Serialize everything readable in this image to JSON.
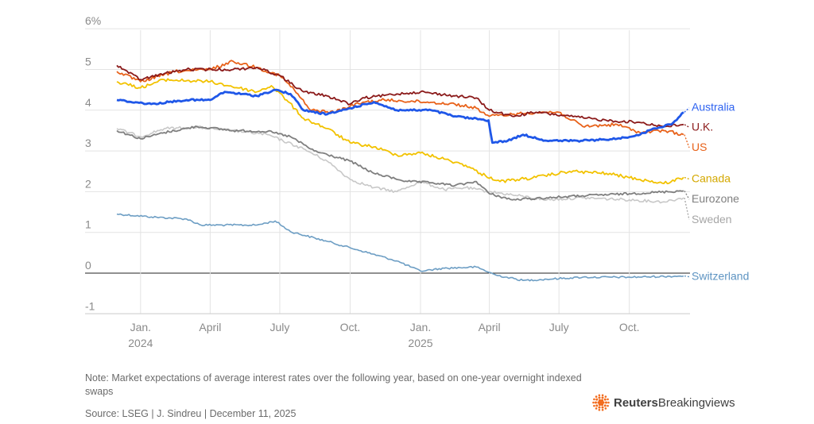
{
  "note": "Note: Market expectations of average interest rates over the following year, based on one-year overnight indexed swaps",
  "source": "Source: LSEG | J. Sindreu | December 11, 2025",
  "brand": {
    "bold": "Reuters",
    "light": "Breakingviews",
    "logo_icon": "reuters-dots-logo-icon"
  },
  "chart_data": {
    "type": "line",
    "y_unit_suffix": "%",
    "ylim": [
      -1.2,
      6
    ],
    "yticks": [
      -1,
      0,
      1,
      2,
      3,
      4,
      5,
      6
    ],
    "ytick_labels": [
      "-1",
      "0",
      "1",
      "2",
      "3",
      "4",
      "5",
      "6%"
    ],
    "x_range": [
      "2023-12-01",
      "2025-12-11"
    ],
    "xticks": [
      {
        "date": "2024-01-01",
        "label": "Jan.",
        "sublabel": "2024"
      },
      {
        "date": "2024-04-01",
        "label": "April",
        "sublabel": ""
      },
      {
        "date": "2024-07-01",
        "label": "July",
        "sublabel": ""
      },
      {
        "date": "2024-10-01",
        "label": "Oct.",
        "sublabel": ""
      },
      {
        "date": "2025-01-01",
        "label": "Jan.",
        "sublabel": "2025"
      },
      {
        "date": "2025-04-01",
        "label": "April",
        "sublabel": ""
      },
      {
        "date": "2025-07-01",
        "label": "July",
        "sublabel": ""
      },
      {
        "date": "2025-10-01",
        "label": "Oct.",
        "sublabel": ""
      }
    ],
    "grid": "vertical",
    "zero_line": true,
    "series": [
      {
        "name": "Switzerland",
        "color": "#6d9ec4",
        "width": 1.6,
        "noise": 0.02,
        "points": [
          [
            "2023-12-01",
            1.45
          ],
          [
            "2024-01-15",
            1.38
          ],
          [
            "2024-03-01",
            1.33
          ],
          [
            "2024-03-20",
            1.18
          ],
          [
            "2024-06-01",
            1.18
          ],
          [
            "2024-06-25",
            1.28
          ],
          [
            "2024-07-15",
            1.02
          ],
          [
            "2024-09-01",
            0.78
          ],
          [
            "2024-10-15",
            0.55
          ],
          [
            "2024-12-01",
            0.3
          ],
          [
            "2025-01-01",
            0.05
          ],
          [
            "2025-02-01",
            0.12
          ],
          [
            "2025-03-15",
            0.15
          ],
          [
            "2025-04-10",
            -0.05
          ],
          [
            "2025-05-15",
            -0.18
          ],
          [
            "2025-06-15",
            -0.15
          ],
          [
            "2025-08-01",
            -0.1
          ],
          [
            "2025-10-01",
            -0.1
          ],
          [
            "2025-12-11",
            -0.07
          ]
        ]
      },
      {
        "name": "Sweden",
        "color": "#c8c8c8",
        "width": 1.6,
        "noise": 0.03,
        "points": [
          [
            "2023-12-01",
            3.55
          ],
          [
            "2024-01-01",
            3.35
          ],
          [
            "2024-02-01",
            3.55
          ],
          [
            "2024-03-15",
            3.58
          ],
          [
            "2024-05-01",
            3.5
          ],
          [
            "2024-06-15",
            3.4
          ],
          [
            "2024-08-01",
            3.05
          ],
          [
            "2024-09-01",
            2.75
          ],
          [
            "2024-10-01",
            2.3
          ],
          [
            "2024-11-01",
            2.1
          ],
          [
            "2024-12-01",
            2.0
          ],
          [
            "2025-01-01",
            2.25
          ],
          [
            "2025-02-01",
            2.05
          ],
          [
            "2025-03-01",
            2.1
          ],
          [
            "2025-04-01",
            2.0
          ],
          [
            "2025-05-01",
            1.92
          ],
          [
            "2025-06-15",
            1.8
          ],
          [
            "2025-08-01",
            1.85
          ],
          [
            "2025-10-01",
            1.8
          ],
          [
            "2025-11-15",
            1.75
          ],
          [
            "2025-12-11",
            1.85
          ]
        ]
      },
      {
        "name": "Eurozone",
        "color": "#7f7f7f",
        "width": 1.8,
        "noise": 0.025,
        "points": [
          [
            "2023-12-01",
            3.5
          ],
          [
            "2024-01-01",
            3.3
          ],
          [
            "2024-02-01",
            3.45
          ],
          [
            "2024-03-15",
            3.6
          ],
          [
            "2024-05-01",
            3.5
          ],
          [
            "2024-06-15",
            3.48
          ],
          [
            "2024-07-15",
            3.35
          ],
          [
            "2024-08-15",
            3.0
          ],
          [
            "2024-10-01",
            2.75
          ],
          [
            "2024-11-01",
            2.45
          ],
          [
            "2024-12-15",
            2.25
          ],
          [
            "2025-01-15",
            2.22
          ],
          [
            "2025-02-15",
            2.15
          ],
          [
            "2025-03-15",
            2.25
          ],
          [
            "2025-04-01",
            1.95
          ],
          [
            "2025-05-01",
            1.8
          ],
          [
            "2025-06-15",
            1.85
          ],
          [
            "2025-08-01",
            1.9
          ],
          [
            "2025-10-01",
            1.95
          ],
          [
            "2025-12-11",
            2.02
          ]
        ]
      },
      {
        "name": "Canada",
        "color": "#f2c200",
        "width": 1.8,
        "noise": 0.035,
        "points": [
          [
            "2023-12-01",
            4.7
          ],
          [
            "2024-01-01",
            4.55
          ],
          [
            "2024-02-01",
            4.75
          ],
          [
            "2024-04-01",
            4.7
          ],
          [
            "2024-06-01",
            4.45
          ],
          [
            "2024-06-20",
            4.6
          ],
          [
            "2024-07-10",
            4.25
          ],
          [
            "2024-08-01",
            3.8
          ],
          [
            "2024-09-01",
            3.55
          ],
          [
            "2024-10-01",
            3.2
          ],
          [
            "2024-11-01",
            3.1
          ],
          [
            "2024-12-01",
            2.9
          ],
          [
            "2025-01-01",
            2.95
          ],
          [
            "2025-02-01",
            2.8
          ],
          [
            "2025-03-01",
            2.65
          ],
          [
            "2025-03-20",
            2.45
          ],
          [
            "2025-04-15",
            2.25
          ],
          [
            "2025-06-01",
            2.35
          ],
          [
            "2025-07-15",
            2.5
          ],
          [
            "2025-09-01",
            2.45
          ],
          [
            "2025-10-15",
            2.3
          ],
          [
            "2025-11-15",
            2.2
          ],
          [
            "2025-12-11",
            2.35
          ]
        ]
      },
      {
        "name": "US",
        "color": "#e8621a",
        "width": 1.8,
        "noise": 0.035,
        "points": [
          [
            "2023-12-01",
            4.95
          ],
          [
            "2024-01-01",
            4.7
          ],
          [
            "2024-02-15",
            4.95
          ],
          [
            "2024-04-01",
            5.0
          ],
          [
            "2024-05-01",
            5.2
          ],
          [
            "2024-06-01",
            5.05
          ],
          [
            "2024-07-01",
            4.85
          ],
          [
            "2024-07-20",
            4.5
          ],
          [
            "2024-08-10",
            4.0
          ],
          [
            "2024-09-10",
            3.95
          ],
          [
            "2024-10-01",
            4.1
          ],
          [
            "2024-10-20",
            4.2
          ],
          [
            "2024-11-15",
            4.25
          ],
          [
            "2025-01-10",
            4.2
          ],
          [
            "2025-02-15",
            4.15
          ],
          [
            "2025-03-15",
            4.05
          ],
          [
            "2025-04-01",
            3.85
          ],
          [
            "2025-05-01",
            3.9
          ],
          [
            "2025-06-01",
            3.95
          ],
          [
            "2025-07-01",
            3.95
          ],
          [
            "2025-08-01",
            3.6
          ],
          [
            "2025-09-15",
            3.65
          ],
          [
            "2025-10-15",
            3.45
          ],
          [
            "2025-11-15",
            3.5
          ],
          [
            "2025-12-11",
            3.4
          ]
        ]
      },
      {
        "name": "U.K.",
        "color": "#8b1a1a",
        "width": 1.8,
        "noise": 0.03,
        "points": [
          [
            "2023-12-01",
            5.1
          ],
          [
            "2024-01-01",
            4.75
          ],
          [
            "2024-02-01",
            4.9
          ],
          [
            "2024-03-01",
            5.0
          ],
          [
            "2024-05-01",
            5.0
          ],
          [
            "2024-06-01",
            5.05
          ],
          [
            "2024-07-01",
            4.85
          ],
          [
            "2024-08-01",
            4.45
          ],
          [
            "2024-09-01",
            4.35
          ],
          [
            "2024-10-01",
            4.15
          ],
          [
            "2024-10-20",
            4.3
          ],
          [
            "2024-12-01",
            4.4
          ],
          [
            "2025-01-01",
            4.45
          ],
          [
            "2025-02-15",
            4.35
          ],
          [
            "2025-03-15",
            4.3
          ],
          [
            "2025-04-01",
            4.0
          ],
          [
            "2025-05-01",
            3.85
          ],
          [
            "2025-06-01",
            3.95
          ],
          [
            "2025-07-15",
            3.85
          ],
          [
            "2025-09-01",
            3.75
          ],
          [
            "2025-10-15",
            3.7
          ],
          [
            "2025-11-15",
            3.6
          ],
          [
            "2025-12-11",
            3.65
          ]
        ]
      },
      {
        "name": "Australia",
        "color": "#1f57e8",
        "width": 2.8,
        "noise": 0.02,
        "points": [
          [
            "2023-12-01",
            4.25
          ],
          [
            "2024-01-15",
            4.15
          ],
          [
            "2024-03-01",
            4.25
          ],
          [
            "2024-04-01",
            4.25
          ],
          [
            "2024-04-20",
            4.45
          ],
          [
            "2024-06-01",
            4.35
          ],
          [
            "2024-06-25",
            4.5
          ],
          [
            "2024-07-15",
            4.4
          ],
          [
            "2024-08-01",
            4.0
          ],
          [
            "2024-09-01",
            3.9
          ],
          [
            "2024-10-01",
            4.05
          ],
          [
            "2024-11-01",
            4.2
          ],
          [
            "2024-12-01",
            4.0
          ],
          [
            "2025-01-15",
            4.0
          ],
          [
            "2025-02-15",
            3.85
          ],
          [
            "2025-03-31",
            3.75
          ],
          [
            "2025-04-05",
            3.2
          ],
          [
            "2025-04-25",
            3.25
          ],
          [
            "2025-05-15",
            3.4
          ],
          [
            "2025-06-15",
            3.25
          ],
          [
            "2025-08-01",
            3.25
          ],
          [
            "2025-09-15",
            3.3
          ],
          [
            "2025-10-15",
            3.4
          ],
          [
            "2025-11-01",
            3.55
          ],
          [
            "2025-11-25",
            3.65
          ],
          [
            "2025-12-11",
            3.95
          ]
        ]
      }
    ],
    "legend": [
      {
        "name": "Australia",
        "color": "#2d62f0",
        "label_value": 4.08,
        "line_value": 3.95
      },
      {
        "name": "U.K.",
        "color": "#8b1a1a",
        "label_value": 3.6,
        "line_value": 3.65
      },
      {
        "name": "US",
        "color": "#e8621a",
        "label_value": 3.1,
        "line_value": 3.4
      },
      {
        "name": "Canada",
        "color": "#d4a800",
        "label_value": 2.33,
        "line_value": 2.35
      },
      {
        "name": "Eurozone",
        "color": "#7f7f7f",
        "label_value": 1.83,
        "line_value": 2.02
      },
      {
        "name": "Sweden",
        "color": "#a6a6a6",
        "label_value": 1.33,
        "line_value": 1.85
      },
      {
        "name": "Switzerland",
        "color": "#5e94c2",
        "label_value": -0.07,
        "line_value": -0.07
      }
    ]
  }
}
